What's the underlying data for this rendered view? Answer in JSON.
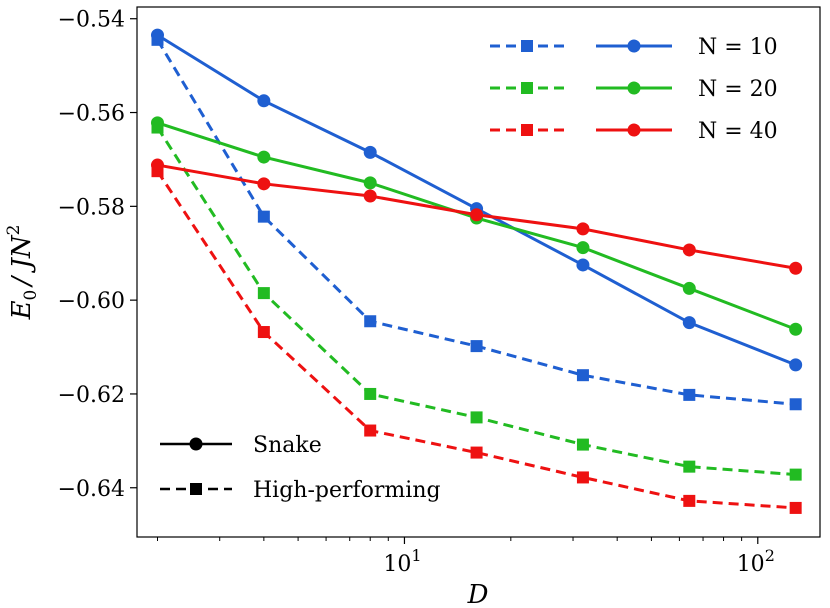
{
  "chart_data": {
    "type": "line",
    "xscale": "log",
    "x": [
      2,
      4,
      8,
      16,
      32,
      64,
      128
    ],
    "xlim": [
      1.75,
      150
    ],
    "ylim": [
      -0.6505,
      -0.5375
    ],
    "xlabel": "D",
    "ylabel_main": "E",
    "ylabel_sub": "0",
    "ylabel_rest": "/ JN",
    "ylabel_sup": "2",
    "y_ticks": [
      {
        "value": -0.54,
        "label": "−0.54"
      },
      {
        "value": -0.56,
        "label": "−0.56"
      },
      {
        "value": -0.58,
        "label": "−0.58"
      },
      {
        "value": -0.6,
        "label": "−0.60"
      },
      {
        "value": -0.62,
        "label": "−0.62"
      },
      {
        "value": -0.64,
        "label": "−0.64"
      }
    ],
    "x_ticks": [
      {
        "value": 10,
        "base": "10",
        "exp": "1"
      },
      {
        "value": 100,
        "base": "10",
        "exp": "2"
      }
    ],
    "series": [
      {
        "name": "N = 10 Snake",
        "group": "N = 10",
        "style": "solid",
        "marker": "circle",
        "color": "#1f5fd1",
        "values": [
          -0.5435,
          -0.5575,
          -0.5685,
          -0.5805,
          -0.5925,
          -0.6048,
          -0.6138
        ]
      },
      {
        "name": "N = 20 Snake",
        "group": "N = 20",
        "style": "solid",
        "marker": "circle",
        "color": "#22bb22",
        "values": [
          -0.5622,
          -0.5695,
          -0.575,
          -0.5825,
          -0.5888,
          -0.5975,
          -0.6062
        ]
      },
      {
        "name": "N = 40 Snake",
        "group": "N = 40",
        "style": "solid",
        "marker": "circle",
        "color": "#ee1111",
        "values": [
          -0.5712,
          -0.5752,
          -0.5778,
          -0.5818,
          -0.5848,
          -0.5893,
          -0.5932
        ]
      },
      {
        "name": "N = 10 High-performing",
        "group": "N = 10",
        "style": "dashed",
        "marker": "square",
        "color": "#1f5fd1",
        "values": [
          -0.5445,
          -0.5822,
          -0.6045,
          -0.6098,
          -0.616,
          -0.6202,
          -0.6222
        ]
      },
      {
        "name": "N = 20 High-performing",
        "group": "N = 20",
        "style": "dashed",
        "marker": "square",
        "color": "#22bb22",
        "values": [
          -0.5632,
          -0.5985,
          -0.62,
          -0.625,
          -0.6308,
          -0.6355,
          -0.6372
        ]
      },
      {
        "name": "N = 40 High-performing",
        "group": "N = 40",
        "style": "dashed",
        "marker": "square",
        "color": "#ee1111",
        "values": [
          -0.5725,
          -0.6068,
          -0.6278,
          -0.6325,
          -0.6378,
          -0.6428,
          -0.6443
        ]
      }
    ],
    "legend_top": [
      {
        "label": "N = 10",
        "color": "#1f5fd1"
      },
      {
        "label": "N = 20",
        "color": "#22bb22"
      },
      {
        "label": "N = 40",
        "color": "#ee1111"
      }
    ],
    "legend_top_position": "top-right",
    "legend_bottom": [
      {
        "label": "Snake",
        "style": "solid",
        "marker": "circle"
      },
      {
        "label": "High-performing",
        "style": "dashed",
        "marker": "square"
      }
    ],
    "legend_bottom_position": "bottom-left",
    "grid": false
  }
}
